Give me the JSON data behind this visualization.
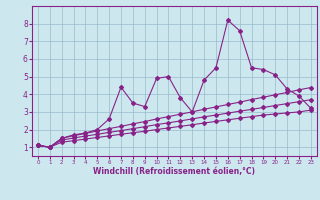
{
  "x": [
    0,
    1,
    2,
    3,
    4,
    5,
    6,
    7,
    8,
    9,
    10,
    11,
    12,
    13,
    14,
    15,
    16,
    17,
    18,
    19,
    20,
    21,
    22,
    23
  ],
  "line1": [
    1.1,
    1.0,
    1.5,
    1.7,
    1.8,
    2.0,
    2.6,
    4.4,
    3.5,
    3.3,
    4.9,
    5.0,
    3.8,
    3.0,
    4.8,
    5.5,
    8.2,
    7.6,
    5.5,
    5.4,
    5.1,
    4.3,
    3.9,
    3.2
  ],
  "line2": [
    1.1,
    1.0,
    1.5,
    1.65,
    1.78,
    1.92,
    2.05,
    2.18,
    2.32,
    2.45,
    2.6,
    2.73,
    2.87,
    3.0,
    3.15,
    3.28,
    3.42,
    3.55,
    3.7,
    3.83,
    3.97,
    4.1,
    4.25,
    4.38
  ],
  "line3": [
    1.1,
    1.0,
    1.4,
    1.52,
    1.63,
    1.73,
    1.84,
    1.94,
    2.05,
    2.16,
    2.28,
    2.38,
    2.49,
    2.6,
    2.72,
    2.82,
    2.93,
    3.04,
    3.14,
    3.25,
    3.36,
    3.47,
    3.58,
    3.69
  ],
  "line4": [
    1.1,
    1.0,
    1.28,
    1.37,
    1.46,
    1.55,
    1.64,
    1.73,
    1.82,
    1.9,
    2.0,
    2.09,
    2.18,
    2.27,
    2.37,
    2.46,
    2.55,
    2.64,
    2.73,
    2.82,
    2.88,
    2.94,
    3.0,
    3.1
  ],
  "color": "#882288",
  "bg_color": "#cce8ee",
  "grid_color": "#99bbcc",
  "xlabel": "Windchill (Refroidissement éolien,°C)",
  "ylim": [
    0.5,
    9
  ],
  "xlim": [
    -0.5,
    23.5
  ],
  "yticks": [
    1,
    2,
    3,
    4,
    5,
    6,
    7,
    8
  ],
  "xticks": [
    0,
    1,
    2,
    3,
    4,
    5,
    6,
    7,
    8,
    9,
    10,
    11,
    12,
    13,
    14,
    15,
    16,
    17,
    18,
    19,
    20,
    21,
    22,
    23
  ]
}
